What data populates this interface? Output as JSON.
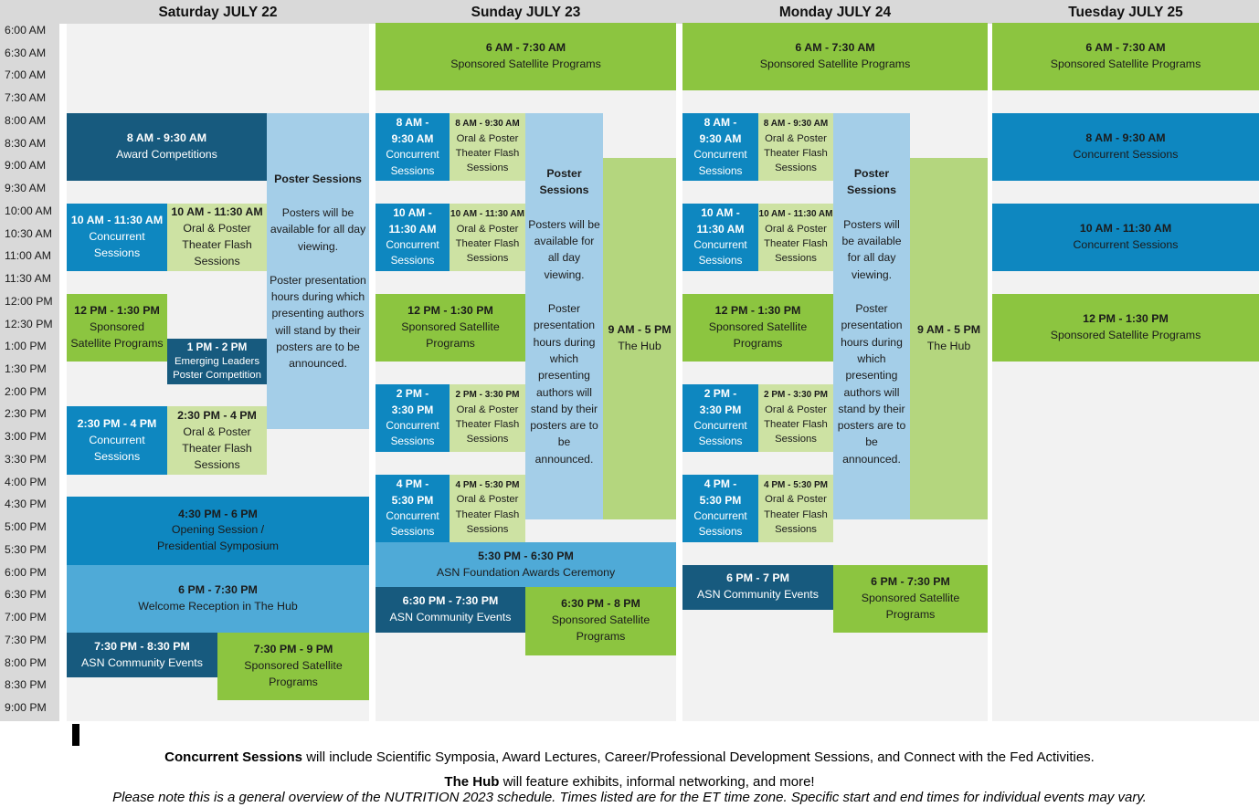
{
  "palette": {
    "navy": "#175A7E",
    "blue": "#0E87C0",
    "sky": "#4FAAD7",
    "light_blue": "#A4CEE8",
    "green": "#8CC540",
    "light_green": "#CDE2A3",
    "hub_green": "#B4D67E",
    "band_gray": "#D9D9D9",
    "lane_bg": "#F2F2F2",
    "text_dark": "#1B1B1B",
    "text_light": "#FFFFFF"
  },
  "time_axis": {
    "labels": [
      "6:00 AM",
      "6:30 AM",
      "7:00 AM",
      "7:30 AM",
      "8:00 AM",
      "8:30 AM",
      "9:00 AM",
      "9:30 AM",
      "10:00 AM",
      "10:30 AM",
      "11:00 AM",
      "11:30 AM",
      "12:00 PM",
      "12:30 PM",
      "1:00 PM",
      "1:30 PM",
      "2:00 PM",
      "2:30 PM",
      "3:00 PM",
      "3:30 PM",
      "4:00 PM",
      "4:30 PM",
      "5:00 PM",
      "5:30 PM",
      "6:00 PM",
      "6:30 PM",
      "7:00 PM",
      "7:30 PM",
      "8:00 PM",
      "8:30 PM",
      "9:00 PM"
    ]
  },
  "days": [
    {
      "id": "saturday",
      "label": "Saturday JULY 22",
      "events": [
        {
          "name": "award-competitions",
          "time": "8 AM - 9:30 AM",
          "title": "Award Competitions",
          "start": "8:00",
          "end": "9:30",
          "col": "ab",
          "bg": "navy",
          "fg": "light"
        },
        {
          "name": "poster-sessions",
          "kind": "poster",
          "heading": "Poster Sessions",
          "paragraphs": [
            "Posters will be available for all day viewing.",
            "Poster presentation hours during which presenting authors will stand by their posters are to be announced."
          ],
          "start": "8:00",
          "end": "15:00",
          "col": "poster",
          "bg": "light_blue",
          "fg": "dark"
        },
        {
          "name": "concurrent-sessions-10am",
          "time": "10 AM - 11:30 AM",
          "title": "Concurrent Sessions",
          "start": "10:00",
          "end": "11:30",
          "col": "a",
          "bg": "blue",
          "fg": "light"
        },
        {
          "name": "oral-poster-theater-flash-10am",
          "time": "10 AM - 11:30 AM",
          "title": "Oral & Poster Theater Flash Sessions",
          "start": "10:00",
          "end": "11:30",
          "col": "b",
          "bg": "light_green",
          "fg": "dark"
        },
        {
          "name": "sponsored-satellite-noon",
          "time": "12 PM - 1:30 PM",
          "title": "Sponsored Satellite Programs",
          "start": "12:00",
          "end": "13:30",
          "col": "a",
          "bg": "green",
          "fg": "dark"
        },
        {
          "name": "emerging-leaders-poster-competition",
          "time": "1 PM - 2 PM",
          "title": "Emerging Leaders Poster Competition",
          "start": "13:00",
          "end": "14:00",
          "col": "b",
          "bg": "navy",
          "fg": "light",
          "tight": true
        },
        {
          "name": "concurrent-sessions-230pm",
          "time": "2:30 PM - 4 PM",
          "title": "Concurrent Sessions",
          "start": "14:30",
          "end": "16:00",
          "col": "a",
          "bg": "blue",
          "fg": "light"
        },
        {
          "name": "oral-poster-theater-flash-230pm",
          "time": "2:30 PM - 4 PM",
          "title": "Oral & Poster Theater Flash Sessions",
          "start": "14:30",
          "end": "16:00",
          "col": "b",
          "bg": "light_green",
          "fg": "dark"
        },
        {
          "name": "opening-session-presidential-symposium",
          "time": "4:30 PM - 6 PM",
          "title": "Opening Session /\nPresidential Symposium",
          "start": "16:30",
          "end": "18:00",
          "col": "full",
          "bg": "blue",
          "fg": "dark"
        },
        {
          "name": "welcome-reception",
          "time": "6 PM - 7:30 PM",
          "title": "Welcome Reception in The Hub",
          "start": "18:00",
          "end": "19:30",
          "col": "full",
          "bg": "sky",
          "fg": "dark"
        },
        {
          "name": "asn-community-events",
          "time": "7:30 PM - 8:30 PM",
          "title": "ASN Community Events",
          "start": "19:30",
          "end": "20:30",
          "col": "asn",
          "bg": "navy",
          "fg": "light"
        },
        {
          "name": "sponsored-satellite-evening",
          "time": "7:30 PM - 9 PM",
          "title": "Sponsored Satellite Programs",
          "start": "19:30",
          "end": "21:00",
          "col": "eve",
          "bg": "green",
          "fg": "dark"
        }
      ]
    },
    {
      "id": "sunday",
      "label": "Sunday JULY 23",
      "events": [
        {
          "name": "sponsored-satellite-early",
          "time": "6 AM - 7:30 AM",
          "title": "Sponsored Satellite Programs",
          "start": "6:00",
          "end": "7:30",
          "col": "full",
          "bg": "green",
          "fg": "dark"
        },
        {
          "name": "concurrent-sessions-8am",
          "time": "8 AM -\n9:30 AM",
          "title": "Concurrent Sessions",
          "start": "8:00",
          "end": "9:30",
          "col": "a",
          "bg": "blue",
          "fg": "light",
          "narrow": true
        },
        {
          "name": "oral-poster-theater-flash-8am",
          "time": "8 AM - 9:30 AM",
          "title": "Oral & Poster Theater Flash Sessions",
          "start": "8:00",
          "end": "9:30",
          "col": "b",
          "bg": "light_green",
          "fg": "dark",
          "compact": true
        },
        {
          "name": "poster-sessions",
          "kind": "poster",
          "heading": "Poster Sessions",
          "paragraphs": [
            "Posters will be available for all day viewing.",
            "Poster presentation hours during which presenting authors will stand by their posters are to be announced."
          ],
          "start": "8:00",
          "end": "17:00",
          "col": "poster",
          "bg": "light_blue",
          "fg": "dark"
        },
        {
          "name": "the-hub",
          "time": "9 AM - 5 PM",
          "title": "The Hub",
          "start": "9:00",
          "end": "17:00",
          "col": "hub",
          "bg": "hub_green",
          "fg": "dark"
        },
        {
          "name": "concurrent-sessions-10am",
          "time": "10 AM -\n11:30 AM",
          "title": "Concurrent Sessions",
          "start": "10:00",
          "end": "11:30",
          "col": "a",
          "bg": "blue",
          "fg": "light",
          "narrow": true
        },
        {
          "name": "oral-poster-theater-flash-10am",
          "time": "10 AM - 11:30 AM",
          "title": "Oral & Poster Theater Flash Sessions",
          "start": "10:00",
          "end": "11:30",
          "col": "b",
          "bg": "light_green",
          "fg": "dark",
          "compact": true
        },
        {
          "name": "sponsored-satellite-noon",
          "time": "12 PM - 1:30 PM",
          "title": "Sponsored Satellite Programs",
          "start": "12:00",
          "end": "13:30",
          "col": "ab",
          "bg": "green",
          "fg": "dark"
        },
        {
          "name": "concurrent-sessions-2pm",
          "time": "2 PM -\n3:30 PM",
          "title": "Concurrent Sessions",
          "start": "14:00",
          "end": "15:30",
          "col": "a",
          "bg": "blue",
          "fg": "light",
          "narrow": true
        },
        {
          "name": "oral-poster-theater-flash-2pm",
          "time": "2 PM - 3:30 PM",
          "title": "Oral & Poster Theater Flash Sessions",
          "start": "14:00",
          "end": "15:30",
          "col": "b",
          "bg": "light_green",
          "fg": "dark",
          "compact": true
        },
        {
          "name": "concurrent-sessions-4pm",
          "time": "4 PM -\n5:30 PM",
          "title": "Concurrent Sessions",
          "start": "16:00",
          "end": "17:30",
          "col": "a",
          "bg": "blue",
          "fg": "light",
          "narrow": true
        },
        {
          "name": "oral-poster-theater-flash-4pm",
          "time": "4 PM - 5:30 PM",
          "title": "Oral & Poster Theater Flash Sessions",
          "start": "16:00",
          "end": "17:30",
          "col": "b",
          "bg": "light_green",
          "fg": "dark",
          "compact": true
        },
        {
          "name": "asn-foundation-awards-ceremony",
          "time": "5:30 PM - 6:30 PM",
          "title": "ASN Foundation Awards Ceremony",
          "start": "17:30",
          "end": "18:30",
          "col": "full",
          "bg": "sky",
          "fg": "dark"
        },
        {
          "name": "asn-community-events",
          "time": "6:30 PM - 7:30 PM",
          "title": "ASN Community Events",
          "start": "18:30",
          "end": "19:30",
          "col": "eveL",
          "bg": "navy",
          "fg": "light"
        },
        {
          "name": "sponsored-satellite-evening",
          "time": "6:30 PM - 8 PM",
          "title": "Sponsored Satellite Programs",
          "start": "18:30",
          "end": "20:00",
          "col": "eveR",
          "bg": "green",
          "fg": "dark"
        }
      ]
    },
    {
      "id": "monday",
      "label": "Monday JULY 24",
      "events": [
        {
          "name": "sponsored-satellite-early",
          "time": "6 AM - 7:30 AM",
          "title": "Sponsored Satellite Programs",
          "start": "6:00",
          "end": "7:30",
          "col": "full",
          "bg": "green",
          "fg": "dark"
        },
        {
          "name": "concurrent-sessions-8am",
          "time": "8 AM -\n9:30 AM",
          "title": "Concurrent Sessions",
          "start": "8:00",
          "end": "9:30",
          "col": "a",
          "bg": "blue",
          "fg": "light",
          "narrow": true
        },
        {
          "name": "oral-poster-theater-flash-8am",
          "time": "8 AM - 9:30 AM",
          "title": "Oral & Poster Theater Flash Sessions",
          "start": "8:00",
          "end": "9:30",
          "col": "b",
          "bg": "light_green",
          "fg": "dark",
          "compact": true
        },
        {
          "name": "poster-sessions",
          "kind": "poster",
          "heading": "Poster Sessions",
          "paragraphs": [
            "Posters will be available for all day viewing.",
            "Poster presentation hours during which presenting authors will stand by their posters are to be announced."
          ],
          "start": "8:00",
          "end": "17:00",
          "col": "poster",
          "bg": "light_blue",
          "fg": "dark"
        },
        {
          "name": "the-hub",
          "time": "9 AM - 5 PM",
          "title": "The Hub",
          "start": "9:00",
          "end": "17:00",
          "col": "hub",
          "bg": "hub_green",
          "fg": "dark"
        },
        {
          "name": "concurrent-sessions-10am",
          "time": "10 AM -\n11:30 AM",
          "title": "Concurrent Sessions",
          "start": "10:00",
          "end": "11:30",
          "col": "a",
          "bg": "blue",
          "fg": "light",
          "narrow": true
        },
        {
          "name": "oral-poster-theater-flash-10am",
          "time": "10 AM - 11:30 AM",
          "title": "Oral & Poster Theater Flash Sessions",
          "start": "10:00",
          "end": "11:30",
          "col": "b",
          "bg": "light_green",
          "fg": "dark",
          "compact": true
        },
        {
          "name": "sponsored-satellite-noon",
          "time": "12 PM - 1:30 PM",
          "title": "Sponsored Satellite Programs",
          "start": "12:00",
          "end": "13:30",
          "col": "ab",
          "bg": "green",
          "fg": "dark"
        },
        {
          "name": "concurrent-sessions-2pm",
          "time": "2 PM -\n3:30 PM",
          "title": "Concurrent Sessions",
          "start": "14:00",
          "end": "15:30",
          "col": "a",
          "bg": "blue",
          "fg": "light",
          "narrow": true
        },
        {
          "name": "oral-poster-theater-flash-2pm",
          "time": "2 PM - 3:30 PM",
          "title": "Oral & Poster Theater Flash Sessions",
          "start": "14:00",
          "end": "15:30",
          "col": "b",
          "bg": "light_green",
          "fg": "dark",
          "compact": true
        },
        {
          "name": "concurrent-sessions-4pm",
          "time": "4 PM -\n5:30 PM",
          "title": "Concurrent Sessions",
          "start": "16:00",
          "end": "17:30",
          "col": "a",
          "bg": "blue",
          "fg": "light",
          "narrow": true
        },
        {
          "name": "oral-poster-theater-flash-4pm",
          "time": "4 PM - 5:30 PM",
          "title": "Oral & Poster Theater Flash Sessions",
          "start": "16:00",
          "end": "17:30",
          "col": "b",
          "bg": "light_green",
          "fg": "dark",
          "compact": true
        },
        {
          "name": "asn-community-events",
          "time": "6 PM - 7 PM",
          "title": "ASN Community Events",
          "start": "18:00",
          "end": "19:00",
          "col": "eveL",
          "bg": "navy",
          "fg": "light"
        },
        {
          "name": "sponsored-satellite-evening",
          "time": "6 PM - 7:30 PM",
          "title": "Sponsored Satellite Programs",
          "start": "18:00",
          "end": "19:30",
          "col": "eveR",
          "bg": "green",
          "fg": "dark"
        }
      ]
    },
    {
      "id": "tuesday",
      "label": "Tuesday JULY 25",
      "events": [
        {
          "name": "sponsored-satellite-early",
          "time": "6 AM - 7:30 AM",
          "title": "Sponsored Satellite Programs",
          "start": "6:00",
          "end": "7:30",
          "col": "full",
          "bg": "green",
          "fg": "dark"
        },
        {
          "name": "concurrent-sessions-8am",
          "time": "8 AM - 9:30 AM",
          "title": "Concurrent Sessions",
          "start": "8:00",
          "end": "9:30",
          "col": "full",
          "bg": "blue",
          "fg": "dark"
        },
        {
          "name": "concurrent-sessions-10am",
          "time": "10 AM - 11:30 AM",
          "title": "Concurrent Sessions",
          "start": "10:00",
          "end": "11:30",
          "col": "full",
          "bg": "blue",
          "fg": "dark"
        },
        {
          "name": "sponsored-satellite-noon",
          "time": "12 PM - 1:30 PM",
          "title": "Sponsored Satellite Programs",
          "start": "12:00",
          "end": "13:30",
          "col": "full",
          "bg": "green",
          "fg": "dark"
        }
      ]
    }
  ],
  "footer": {
    "line1_bold": "Concurrent Sessions",
    "line1_rest": " will include Scientific Symposia, Award Lectures, Career/Professional Development Sessions, and Connect with the Fed Activities.",
    "line2_bold": "The Hub",
    "line2_rest": " will feature exhibits, informal networking, and more!",
    "line3": "Please note this is a general overview of the NUTRITION 2023 schedule. Times listed are for the ET time zone. Specific start and end times for individual events may vary."
  }
}
